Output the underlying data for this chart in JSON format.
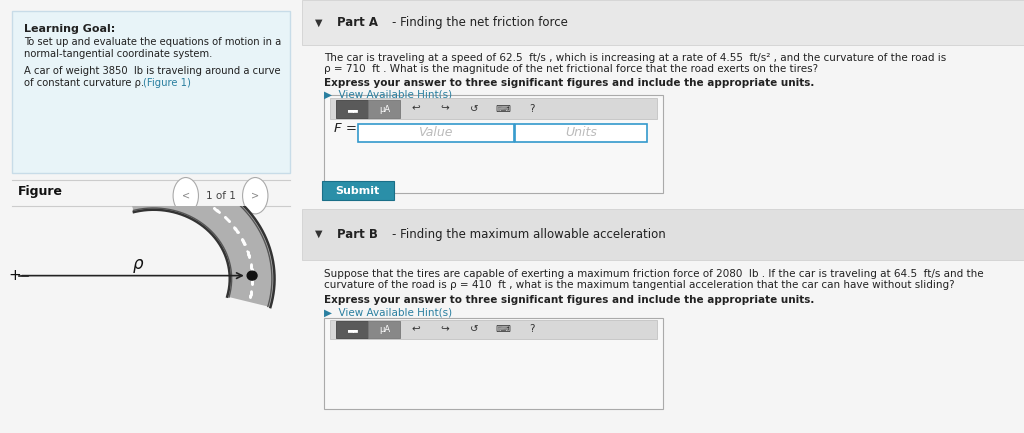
{
  "bg_color": "#f5f5f5",
  "left_panel_bg": "#e8f4f8",
  "left_panel_border": "#c8dce8",
  "learning_goal_title": "Learning Goal:",
  "learning_goal_text1": "To set up and evaluate the equations of motion in a",
  "learning_goal_text2": "normal-tangential coordinate system.",
  "learning_goal_text3": "A car of weight 3850  lb is traveling around a curve",
  "learning_goal_text4": "of constant curvature ρ.",
  "figure_1_link": "(Figure 1)",
  "figure_label": "Figure",
  "figure_nav": "1 of 1",
  "part_a_subtitle": "Finding the net friction force",
  "part_a_text1": "The car is traveling at a speed of 62.5  ft/s , which is increasing at a rate of 4.55  ft/s² , and the curvature of the road is",
  "part_a_text2": "ρ = 710  ft . What is the magnitude of the net frictional force that the road exerts on the tires?",
  "part_a_bold": "Express your answer to three significant figures and include the appropriate units.",
  "part_a_hint": "▶  View Available Hint(s)",
  "formula_label": "F =",
  "value_placeholder": "Value",
  "units_placeholder": "Units",
  "submit_label": "Submit",
  "submit_bg": "#2a8fa8",
  "submit_text_color": "#ffffff",
  "part_b_subtitle": "Finding the maximum allowable acceleration",
  "part_b_text1": "Suppose that the tires are capable of exerting a maximum friction force of 2080  lb . If the car is traveling at 64.5  ft/s and the",
  "part_b_text2": "curvature of the road is ρ = 410  ft , what is the maximum tangential acceleration that the car can have without sliding?",
  "part_b_bold": "Express your answer to three significant figures and include the appropriate units.",
  "part_b_hint": "▶  View Available Hint(s)",
  "hint_color": "#2a7fa0",
  "arrow_color": "#222222",
  "rho_label": "ρ",
  "divider_color": "#cccccc",
  "part_a_header_bg": "#e8e8e8",
  "part_b_header_bg": "#e0e0e0",
  "toolbar_icons": [
    "↩",
    "↪",
    "↺",
    "⌨",
    "?"
  ]
}
